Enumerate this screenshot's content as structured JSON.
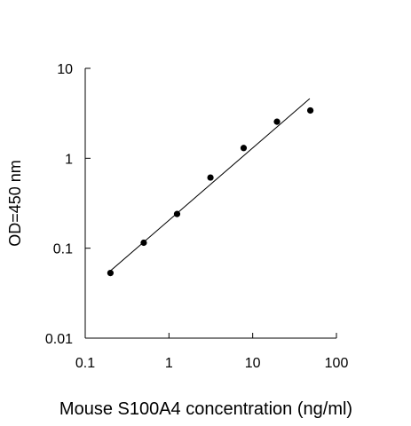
{
  "chart_data": {
    "type": "scatter",
    "title": "",
    "xlabel": "Mouse S100A4 concentration (ng/ml)",
    "ylabel": "OD=450 nm",
    "xscale": "log",
    "yscale": "log",
    "xlim": [
      0.1,
      100
    ],
    "ylim": [
      0.01,
      10
    ],
    "x_ticks": [
      0.1,
      1,
      10,
      100
    ],
    "y_ticks": [
      0.01,
      0.1,
      1,
      10
    ],
    "x_tick_labels": [
      "0.1",
      "1",
      "10",
      "100"
    ],
    "y_tick_labels": [
      "0.01",
      "0.1",
      "1",
      "10"
    ],
    "grid": false,
    "legend": "none",
    "series": [
      {
        "points": [
          {
            "x": 0.2,
            "y": 0.053
          },
          {
            "x": 0.5,
            "y": 0.115
          },
          {
            "x": 1.25,
            "y": 0.24
          },
          {
            "x": 3.13,
            "y": 0.61
          },
          {
            "x": 7.8,
            "y": 1.3
          },
          {
            "x": 19.5,
            "y": 2.55
          },
          {
            "x": 48.8,
            "y": 3.4
          }
        ],
        "color": "#000000"
      }
    ],
    "fit_line": {
      "kind": "log-log linear fit",
      "x": [
        0.2,
        48
      ],
      "y": [
        0.056,
        4.6
      ],
      "color": "#000000"
    }
  }
}
